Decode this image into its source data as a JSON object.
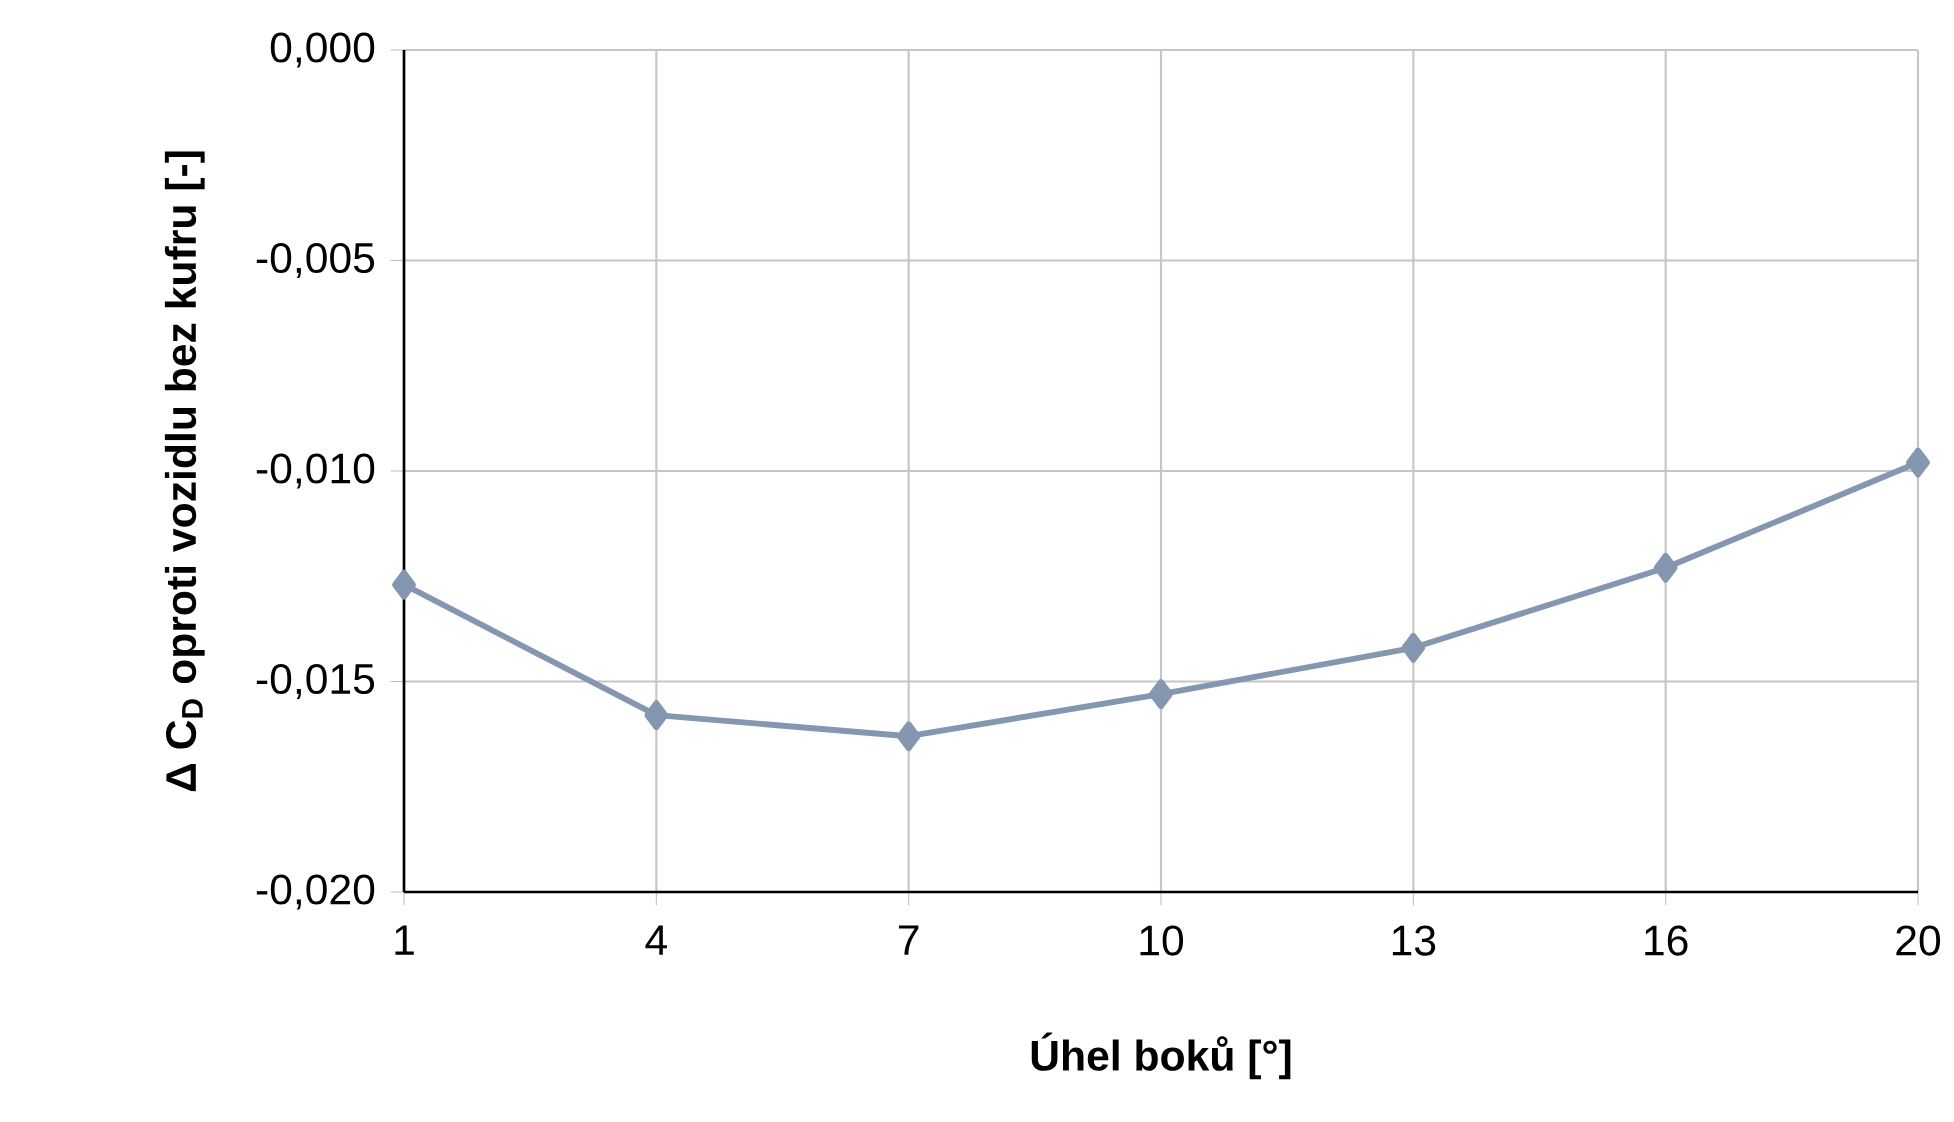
{
  "chart_data": {
    "type": "line",
    "xlabel": "Úhel boků [°]",
    "ylabel": "Δ C$_{D}$ oproti vozidlu bez kufru [-]",
    "categories": [
      "1",
      "4",
      "7",
      "10",
      "13",
      "16",
      "20"
    ],
    "series": [
      {
        "color": "#8496b0",
        "values": [
          -0.0127,
          -0.0158,
          -0.0163,
          -0.0153,
          -0.0142,
          -0.0123,
          -0.0098
        ]
      }
    ],
    "ylim": [
      -0.02,
      0.0
    ],
    "yticks": [
      {
        "value": -0.02,
        "label": "-0,020"
      },
      {
        "value": -0.015,
        "label": "-0,015"
      },
      {
        "value": -0.01,
        "label": "-0,010"
      },
      {
        "value": -0.005,
        "label": "-0,005"
      },
      {
        "value": 0.0,
        "label": "0,000"
      }
    ],
    "grid": true,
    "marker": "diamond",
    "line_style": "solid"
  }
}
